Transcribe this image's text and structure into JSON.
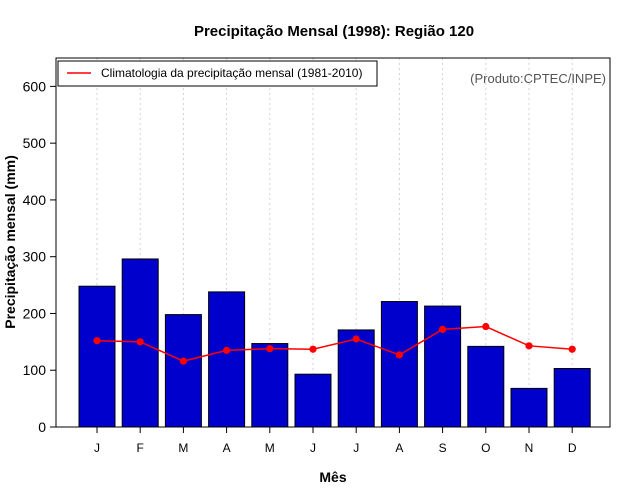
{
  "chart_data": {
    "type": "bar",
    "title": "Precipitação Mensal (1998): Região 120",
    "xlabel": "Mês",
    "ylabel": "Precipitação mensal (mm)",
    "ylim": [
      0,
      650
    ],
    "yticks": [
      0,
      100,
      200,
      300,
      400,
      500,
      600
    ],
    "grid": "vertical dotted",
    "legend_position": "top-left",
    "credit": "(Produto:CPTEC/INPE)",
    "categories": [
      "J",
      "F",
      "M",
      "A",
      "M",
      "J",
      "J",
      "A",
      "S",
      "O",
      "N",
      "D"
    ],
    "series": [
      {
        "name": "Precipitação mensal 1998",
        "type": "bar",
        "color": "#0000cd",
        "values": [
          248,
          296,
          198,
          238,
          147,
          93,
          171,
          221,
          213,
          142,
          68,
          103
        ]
      },
      {
        "name": "Climatologia da precipitação mensal (1981-2010)",
        "type": "line",
        "color": "#ff0000",
        "values": [
          152,
          150,
          116,
          135,
          138,
          137,
          155,
          127,
          172,
          177,
          143,
          137
        ]
      }
    ]
  }
}
